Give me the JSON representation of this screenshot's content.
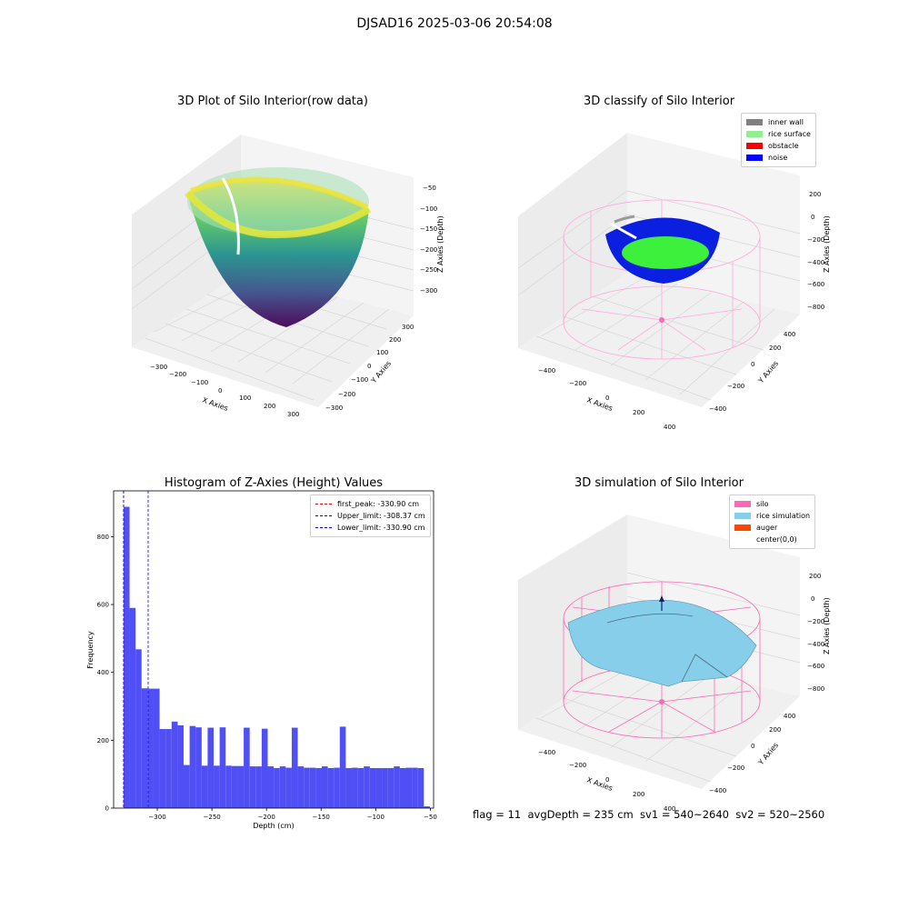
{
  "suptitle": "DJSAD16 2025-03-06 20:54:08",
  "footer": "flag = 11  avgDepth = 235 cm  sv1 = 540~2640  sv2 = 520~2560",
  "colors": {
    "inner_wall": "#808080",
    "rice_surface": "#90ee90",
    "obstacle": "#ff0000",
    "noise": "#0000ff",
    "silo": "#ff69b4",
    "rice_simulation": "#87ceeb",
    "auger": "#ff4500",
    "hist_bar": "#4f4ff5",
    "first_peak": "#ff0000",
    "upper_limit": "#0000ff",
    "lower_limit": "#0000ff"
  },
  "chart_data": [
    {
      "type": "scatter",
      "title": "3D Plot of Silo Interior(row data)",
      "xlabel": "X Axies",
      "ylabel": "Y Axies",
      "zlabel": "Z Axies (Depth)",
      "x_ticks": [
        "−300",
        "−200",
        "−100",
        "0",
        "100",
        "200",
        "300"
      ],
      "y_ticks": [
        "−300",
        "−200",
        "−100",
        "0",
        "100",
        "200",
        "300"
      ],
      "z_ticks": [
        "−50",
        "−100",
        "−150",
        "−200",
        "−250",
        "−300"
      ],
      "colormap": "viridis"
    },
    {
      "type": "scatter",
      "title": "3D classify of Silo Interior",
      "xlabel": "X Axies",
      "ylabel": "Y Axies",
      "zlabel": "Z Axies (Depth)",
      "x_ticks": [
        "−400",
        "−200",
        "0",
        "200",
        "400"
      ],
      "y_ticks": [
        "−400",
        "−200",
        "0",
        "200",
        "400"
      ],
      "z_ticks": [
        "200",
        "0",
        "−200",
        "−400",
        "−600",
        "−800"
      ],
      "legend": [
        "inner wall",
        "rice surface",
        "obstacle",
        "noise"
      ],
      "legend_placement": "top-right"
    },
    {
      "type": "bar",
      "title": "Histogram of Z-Axies (Height) Values",
      "xlabel": "Depth (cm)",
      "ylabel": "Frequency",
      "xlim": [
        -340,
        -47
      ],
      "ylim": [
        0,
        935
      ],
      "x_ticks": [
        -300,
        -250,
        -200,
        -150,
        -100,
        -50
      ],
      "x_tick_labels": [
        "−300",
        "−250",
        "−200",
        "−150",
        "−100",
        "−50"
      ],
      "y_ticks": [
        0,
        200,
        400,
        600,
        800
      ],
      "bin_width": 5.5,
      "bins": [
        [
          -330.9,
          888
        ],
        [
          -325.4,
          590
        ],
        [
          -319.9,
          468
        ],
        [
          -314.4,
          353
        ],
        [
          -308.9,
          352
        ],
        [
          -303.4,
          352
        ],
        [
          -297.9,
          233
        ],
        [
          -292.4,
          233
        ],
        [
          -286.9,
          255
        ],
        [
          -281.4,
          244
        ],
        [
          -275.9,
          127
        ],
        [
          -270.4,
          242
        ],
        [
          -264.9,
          238
        ],
        [
          -259.4,
          125
        ],
        [
          -253.9,
          237
        ],
        [
          -248.4,
          125
        ],
        [
          -242.9,
          238
        ],
        [
          -237.4,
          125
        ],
        [
          -231.9,
          124
        ],
        [
          -226.4,
          124
        ],
        [
          -220.9,
          237
        ],
        [
          -215.4,
          123
        ],
        [
          -209.9,
          123
        ],
        [
          -204.4,
          234
        ],
        [
          -198.9,
          123
        ],
        [
          -193.4,
          118
        ],
        [
          -187.9,
          123
        ],
        [
          -182.4,
          119
        ],
        [
          -176.9,
          237
        ],
        [
          -171.4,
          123
        ],
        [
          -165.9,
          119
        ],
        [
          -160.4,
          119
        ],
        [
          -154.9,
          118
        ],
        [
          -149.4,
          123
        ],
        [
          -143.9,
          118
        ],
        [
          -138.4,
          119
        ],
        [
          -132.9,
          240
        ],
        [
          -127.4,
          118
        ],
        [
          -121.9,
          119
        ],
        [
          -116.4,
          118
        ],
        [
          -110.9,
          123
        ],
        [
          -105.4,
          118
        ],
        [
          -99.9,
          118
        ],
        [
          -94.4,
          118
        ],
        [
          -88.9,
          118
        ],
        [
          -83.4,
          123
        ],
        [
          -77.9,
          118
        ],
        [
          -72.4,
          119
        ],
        [
          -66.9,
          119
        ],
        [
          -61.4,
          118
        ],
        [
          -55.9,
          5
        ]
      ],
      "vlines": [
        {
          "name": "first_peak: -330.90 cm",
          "x": -330.9,
          "color": "#ff0000"
        },
        {
          "name": "Upper_limit: -308.37 cm",
          "x": -308.37,
          "color": "#0000ff"
        },
        {
          "name": "Lower_limit: -330.90 cm",
          "x": -330.9,
          "color": "#0000ff"
        }
      ],
      "legend_placement": "top-right"
    },
    {
      "type": "surface",
      "title": "3D simulation of Silo Interior",
      "xlabel": "X Axies",
      "ylabel": "Y Axies",
      "zlabel": "Z Axies (Depth)",
      "x_ticks": [
        "−400",
        "−200",
        "0",
        "200",
        "400"
      ],
      "y_ticks": [
        "−400",
        "−200",
        "0",
        "200",
        "400"
      ],
      "z_ticks": [
        "200",
        "0",
        "−200",
        "−400",
        "−600",
        "−800"
      ],
      "legend": [
        "silo",
        "rice simulation",
        "auger",
        "center(0,0)"
      ],
      "legend_placement": "top-right"
    }
  ]
}
